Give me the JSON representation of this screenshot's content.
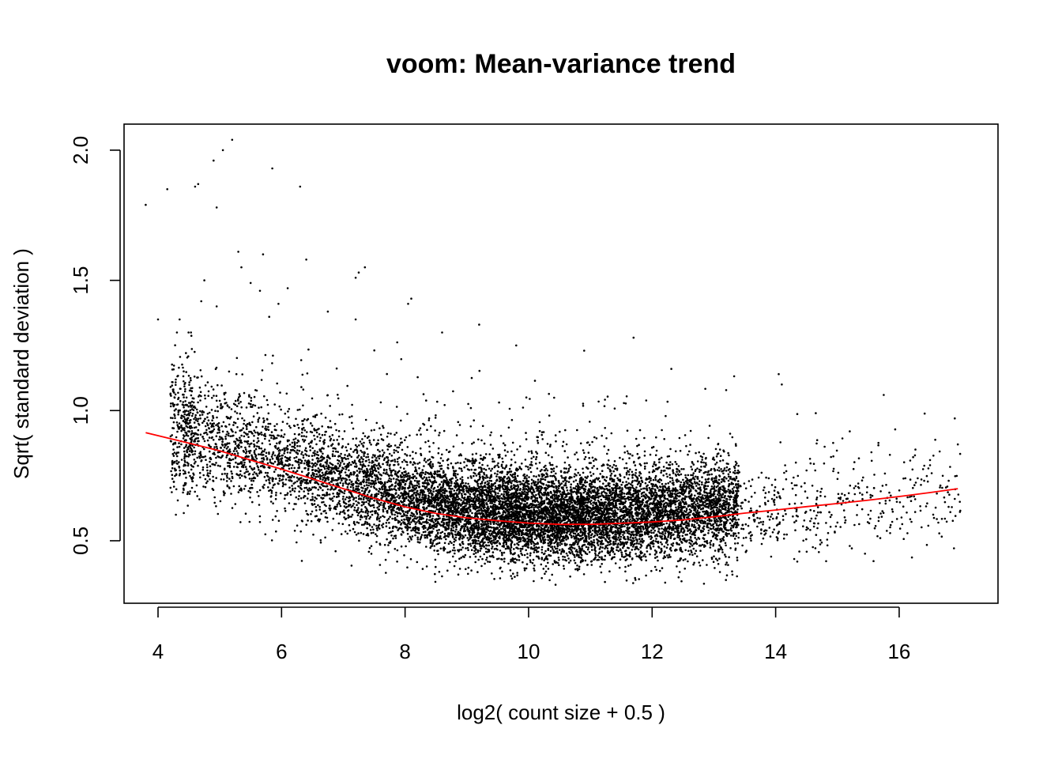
{
  "chart_data": {
    "type": "scatter",
    "title": "voom: Mean-variance trend",
    "xlabel": "log2( count size + 0.5 )",
    "ylabel": "Sqrt( standard deviation )",
    "xlim": [
      3.45,
      17.6
    ],
    "ylim": [
      0.26,
      2.1
    ],
    "xticks": [
      4,
      6,
      8,
      10,
      12,
      14,
      16
    ],
    "xtick_labels": [
      "4",
      "6",
      "8",
      "10",
      "12",
      "14",
      "16"
    ],
    "yticks": [
      0.5,
      1.0,
      1.5,
      2.0
    ],
    "ytick_labels": [
      "0.5",
      "1.0",
      "1.5",
      "2.0"
    ],
    "grid": false,
    "colors": {
      "points": "#000000",
      "trend": "#ff0000",
      "frame": "#000000"
    },
    "point_cloud_note_removed": true,
    "cloud_params": {
      "n": 11000,
      "x_range": [
        4.4,
        13.4
      ],
      "x_peak": 10.3
    },
    "notable_points": [
      {
        "x": 3.8,
        "y": 1.79
      },
      {
        "x": 4.15,
        "y": 1.85
      },
      {
        "x": 4.6,
        "y": 1.86
      },
      {
        "x": 4.65,
        "y": 1.87
      },
      {
        "x": 4.9,
        "y": 1.96
      },
      {
        "x": 4.95,
        "y": 1.78
      },
      {
        "x": 5.05,
        "y": 2.0
      },
      {
        "x": 5.2,
        "y": 2.04
      },
      {
        "x": 5.85,
        "y": 1.93
      },
      {
        "x": 6.3,
        "y": 1.86
      },
      {
        "x": 5.3,
        "y": 1.61
      },
      {
        "x": 5.7,
        "y": 1.6
      },
      {
        "x": 6.4,
        "y": 1.58
      },
      {
        "x": 5.35,
        "y": 1.55
      },
      {
        "x": 7.25,
        "y": 1.53
      },
      {
        "x": 7.35,
        "y": 1.55
      },
      {
        "x": 7.2,
        "y": 1.51
      },
      {
        "x": 4.75,
        "y": 1.5
      },
      {
        "x": 5.5,
        "y": 1.49
      },
      {
        "x": 6.1,
        "y": 1.47
      },
      {
        "x": 5.65,
        "y": 1.46
      },
      {
        "x": 8.1,
        "y": 1.43
      },
      {
        "x": 8.05,
        "y": 1.41
      },
      {
        "x": 5.95,
        "y": 1.41
      },
      {
        "x": 4.7,
        "y": 1.42
      },
      {
        "x": 6.75,
        "y": 1.38
      },
      {
        "x": 4.95,
        "y": 1.4
      },
      {
        "x": 5.8,
        "y": 1.36
      },
      {
        "x": 4.0,
        "y": 1.35
      },
      {
        "x": 4.35,
        "y": 1.35
      },
      {
        "x": 7.2,
        "y": 1.35
      },
      {
        "x": 9.2,
        "y": 1.33
      },
      {
        "x": 8.6,
        "y": 1.3
      },
      {
        "x": 11.7,
        "y": 1.28
      },
      {
        "x": 9.8,
        "y": 1.25
      },
      {
        "x": 10.9,
        "y": 1.23
      },
      {
        "x": 14.05,
        "y": 1.14
      },
      {
        "x": 14.1,
        "y": 1.1
      },
      {
        "x": 15.75,
        "y": 1.06
      },
      {
        "x": 14.65,
        "y": 0.99
      },
      {
        "x": 15.2,
        "y": 0.92
      },
      {
        "x": 16.9,
        "y": 0.97
      },
      {
        "x": 16.95,
        "y": 0.87
      },
      {
        "x": 16.5,
        "y": 0.81
      },
      {
        "x": 16.5,
        "y": 0.79
      },
      {
        "x": 15.55,
        "y": 0.84
      },
      {
        "x": 15.85,
        "y": 0.83
      },
      {
        "x": 16.1,
        "y": 0.74
      },
      {
        "x": 16.3,
        "y": 0.74
      },
      {
        "x": 16.8,
        "y": 0.63
      },
      {
        "x": 14.3,
        "y": 0.43
      },
      {
        "x": 14.35,
        "y": 0.42
      },
      {
        "x": 15.2,
        "y": 0.48
      },
      {
        "x": 13.3,
        "y": 0.37
      },
      {
        "x": 13.6,
        "y": 0.71
      },
      {
        "x": 13.9,
        "y": 0.55
      },
      {
        "x": 15.0,
        "y": 0.57
      },
      {
        "x": 15.5,
        "y": 0.6
      },
      {
        "x": 14.8,
        "y": 0.67
      },
      {
        "x": 14.5,
        "y": 0.77
      }
    ],
    "trend": {
      "x": [
        3.8,
        4.5,
        5.0,
        5.5,
        6.0,
        6.5,
        7.0,
        7.5,
        8.0,
        8.5,
        9.0,
        9.5,
        10.0,
        10.5,
        11.0,
        11.5,
        12.0,
        12.5,
        13.0,
        13.5,
        14.0,
        14.5,
        15.0,
        15.5,
        16.0,
        16.5,
        16.95
      ],
      "y": [
        0.915,
        0.875,
        0.845,
        0.81,
        0.775,
        0.738,
        0.7,
        0.663,
        0.63,
        0.605,
        0.588,
        0.577,
        0.568,
        0.563,
        0.563,
        0.567,
        0.572,
        0.58,
        0.592,
        0.606,
        0.618,
        0.631,
        0.643,
        0.656,
        0.67,
        0.685,
        0.7
      ]
    }
  }
}
